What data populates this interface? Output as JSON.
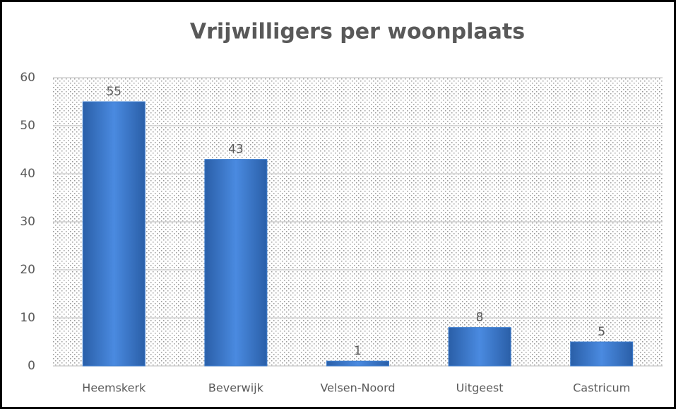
{
  "chart_data": {
    "type": "bar",
    "title": "Vrijwilligers per woonplaats",
    "categories": [
      "Heemskerk",
      "Beverwijk",
      "Velsen-Noord",
      "Uitgeest",
      "Castricum"
    ],
    "values": [
      55,
      43,
      1,
      8,
      5
    ],
    "color": "#3f7fd0",
    "ylim": [
      0,
      60
    ],
    "yticks": [
      0,
      10,
      20,
      30,
      40,
      50,
      60
    ],
    "grid": true
  }
}
